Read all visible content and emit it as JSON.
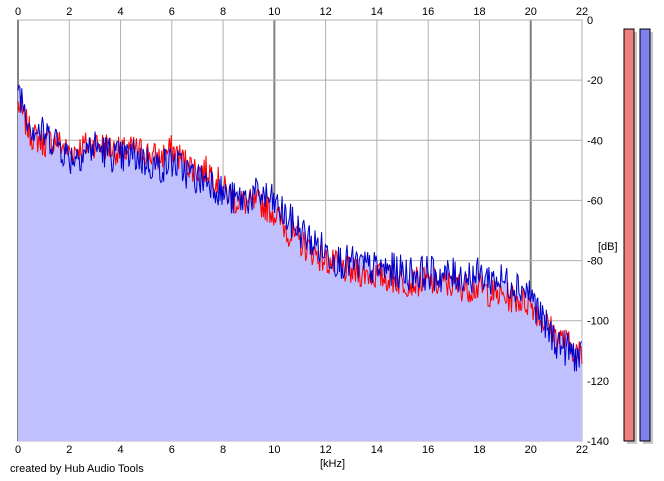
{
  "chart_data": {
    "type": "line",
    "x_unit_label": "[kHz]",
    "y_unit_label": "[dB]",
    "xlim": [
      0,
      22
    ],
    "ylim": [
      -140,
      0
    ],
    "x_ticks": [
      "0",
      "2",
      "4",
      "6",
      "8",
      "10",
      "12",
      "14",
      "16",
      "18",
      "20",
      "22"
    ],
    "y_ticks": [
      "0",
      "-20",
      "-40",
      "-60",
      "-80",
      "-100",
      "-120",
      "-140"
    ],
    "grid": true,
    "x": [
      0,
      0.5,
      1,
      1.5,
      2,
      2.5,
      3,
      3.5,
      4,
      4.5,
      5,
      5.5,
      6,
      6.5,
      7,
      7.5,
      8,
      8.5,
      9,
      9.5,
      10,
      10.5,
      11,
      11.5,
      12,
      12.5,
      13,
      13.5,
      14,
      14.5,
      15,
      15.5,
      16,
      16.5,
      17,
      17.5,
      18,
      18.5,
      19,
      19.5,
      20,
      20.5,
      21,
      21.5,
      22
    ],
    "series": [
      {
        "color": "#ff0000",
        "fill": "#c0c0ff",
        "values": [
          -28,
          -38,
          -41,
          -40,
          -44,
          -42,
          -41,
          -42,
          -44,
          -43,
          -44,
          -46,
          -43,
          -47,
          -50,
          -50,
          -56,
          -60,
          -61,
          -61,
          -64,
          -70,
          -74,
          -77,
          -80,
          -82,
          -84,
          -84,
          -85,
          -86,
          -87,
          -87,
          -87,
          -88,
          -88,
          -89,
          -89,
          -91,
          -92,
          -93,
          -94,
          -100,
          -105,
          -108,
          -112
        ]
      },
      {
        "color": "#0000cc",
        "values": [
          -22,
          -35,
          -38,
          -40,
          -46,
          -44,
          -42,
          -44,
          -46,
          -45,
          -47,
          -49,
          -47,
          -50,
          -53,
          -53,
          -58,
          -60,
          -59,
          -58,
          -61,
          -66,
          -70,
          -74,
          -77,
          -80,
          -81,
          -82,
          -83,
          -83,
          -84,
          -84,
          -84,
          -85,
          -85,
          -85,
          -85,
          -86,
          -87,
          -88,
          -91,
          -101,
          -107,
          -110,
          -113
        ]
      }
    ]
  },
  "level_meters": [
    {
      "color": "#f08080",
      "level_db": -3
    },
    {
      "color": "#8080f0",
      "level_db": -3
    }
  ],
  "credit": "created by Hub Audio Tools"
}
